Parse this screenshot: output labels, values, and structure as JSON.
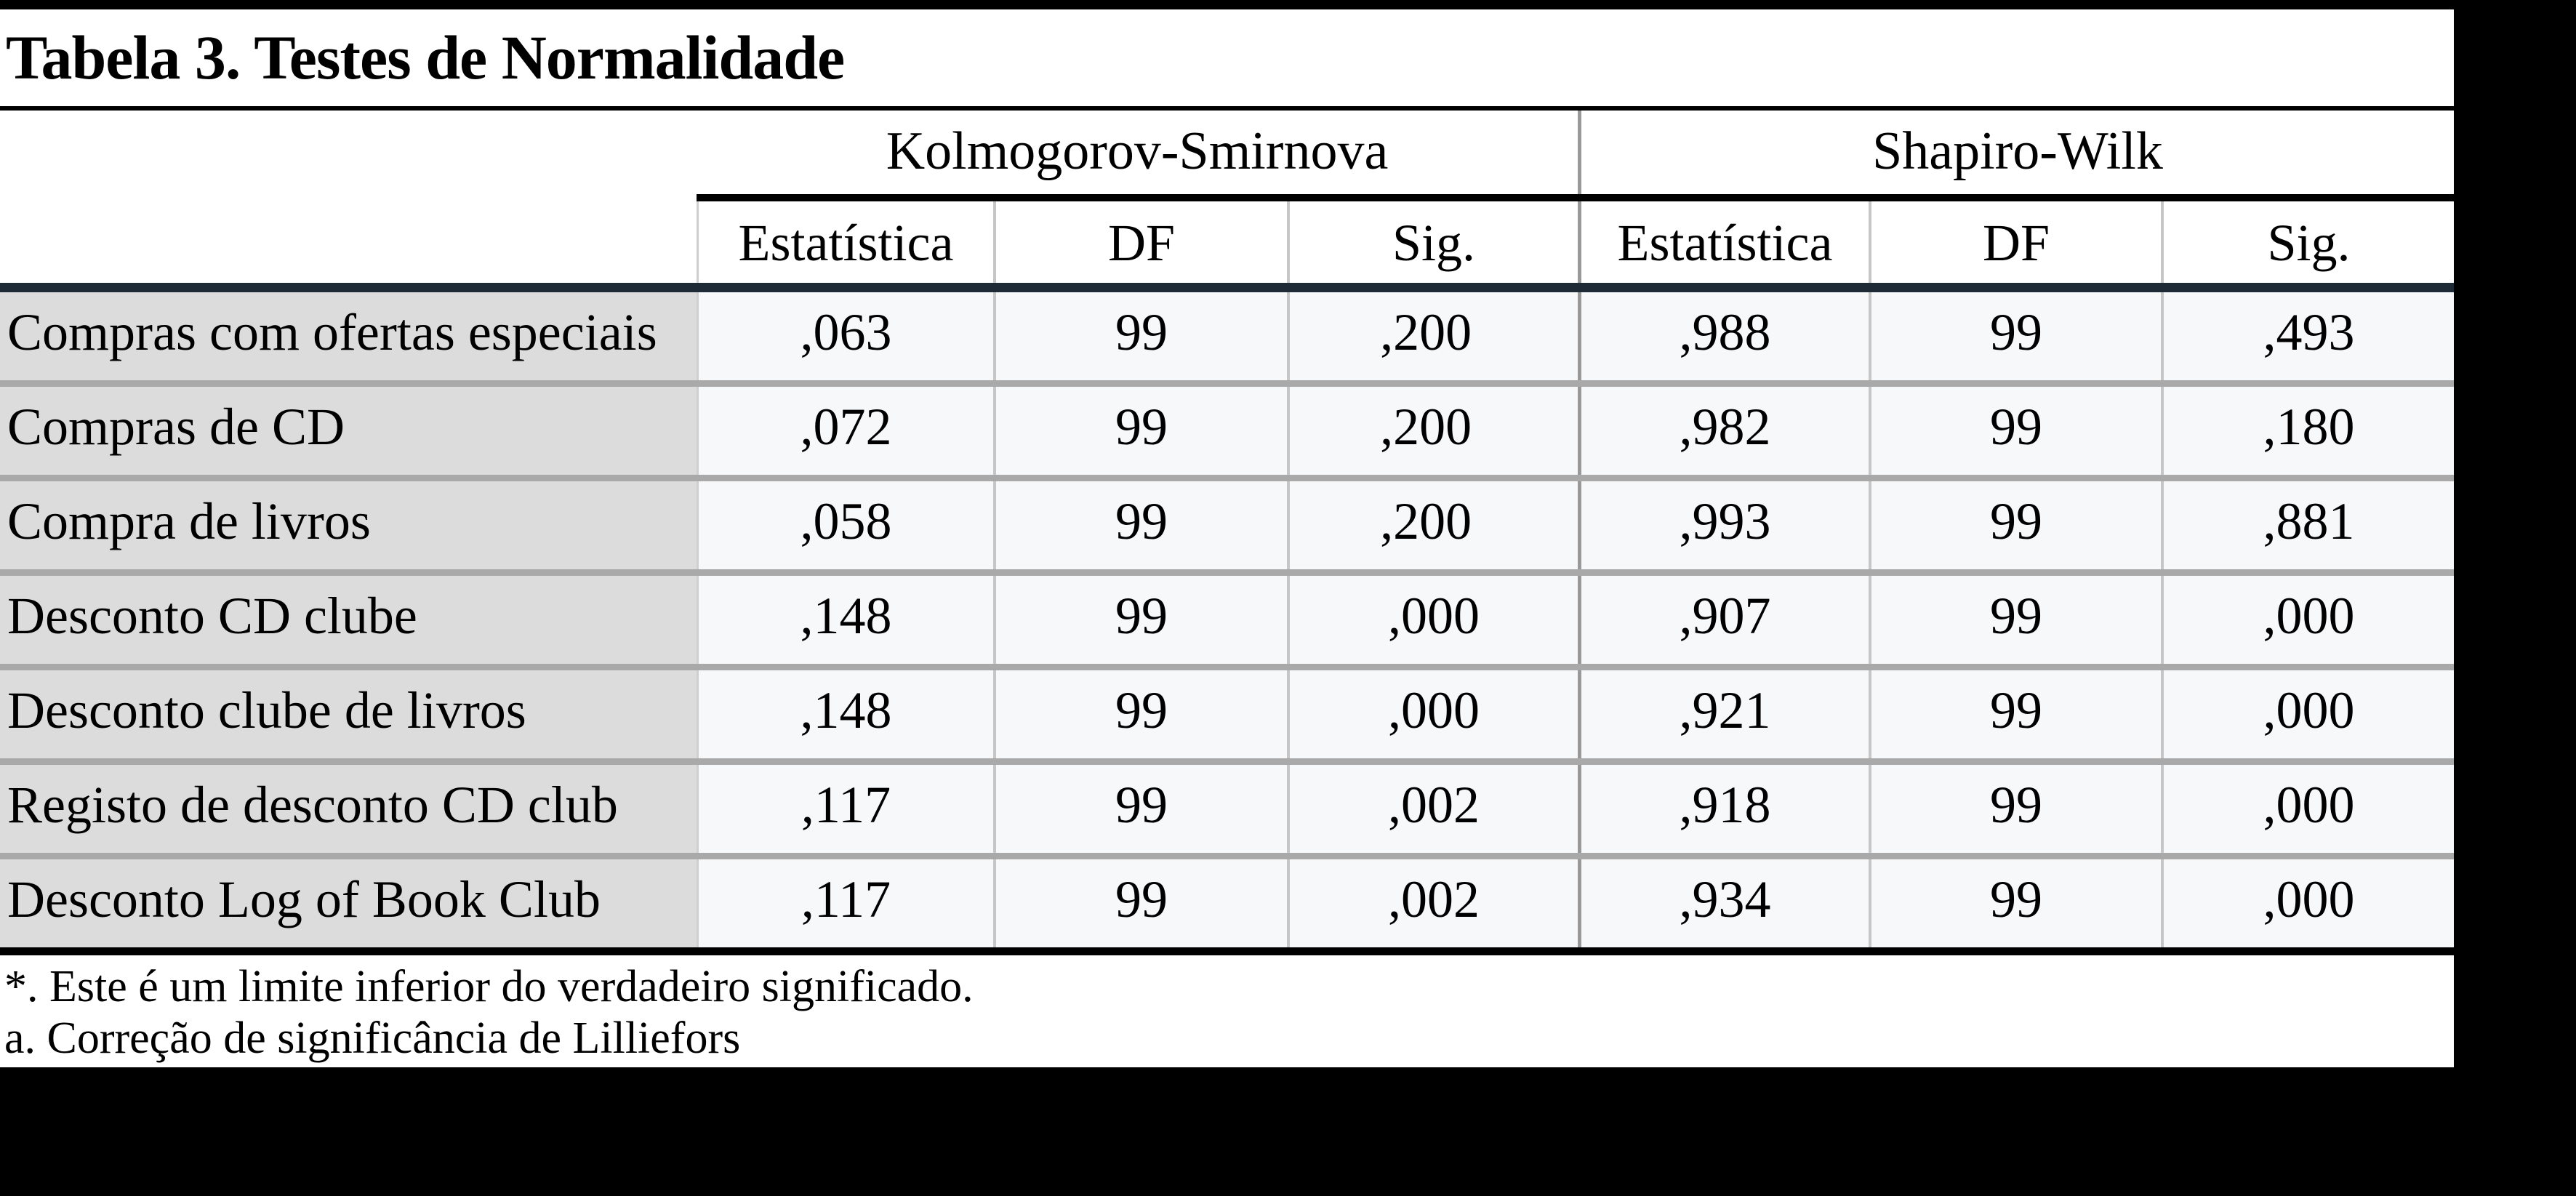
{
  "title": "Tabela 3. Testes de Normalidade",
  "table": {
    "group_headers": [
      {
        "label": "Kolmogorov-Smirnova"
      },
      {
        "label": "Shapiro-Wilk"
      }
    ],
    "sub_headers": [
      "Estatística",
      "DF",
      "Sig."
    ],
    "rows": [
      {
        "label": "Compras com ofertas especiais",
        "ks": [
          ",063",
          "99",
          ",200*"
        ],
        "sw": [
          ",988",
          "99",
          ",493"
        ]
      },
      {
        "label": "Compras de CD",
        "ks": [
          ",072",
          "99",
          ",200*"
        ],
        "sw": [
          ",982",
          "99",
          ",180"
        ]
      },
      {
        "label": "Compra de livros",
        "ks": [
          ",058",
          "99",
          ",200*"
        ],
        "sw": [
          ",993",
          "99",
          ",881"
        ]
      },
      {
        "label": "Desconto CD clube",
        "ks": [
          ",148",
          "99",
          ",000"
        ],
        "sw": [
          ",907",
          "99",
          ",000"
        ]
      },
      {
        "label": "Desconto clube de livros",
        "ks": [
          ",148",
          "99",
          ",000"
        ],
        "sw": [
          ",921",
          "99",
          ",000"
        ]
      },
      {
        "label": "Registo de desconto CD club",
        "ks": [
          ",117",
          "99",
          ",002"
        ],
        "sw": [
          ",918",
          "99",
          ",000"
        ]
      },
      {
        "label": "Desconto Log of Book Club",
        "ks": [
          ",117",
          "99",
          ",002"
        ],
        "sw": [
          ",934",
          "99",
          ",000"
        ]
      }
    ],
    "footnotes": [
      "*. Este é um limite inferior do verdadeiro significado.",
      "a. Correção de significância de Lilliefors"
    ]
  },
  "colors": {
    "page_bg": "#000000",
    "sheet_bg": "#ffffff",
    "label_cell_bg": "#dcdcdc",
    "value_cell_bg": "#f7f8fa",
    "row_separator": "#a9a9a9",
    "column_divider": "#c6c6c6",
    "group_divider": "#999999",
    "subheader_rule": "#1e2a36",
    "black_rule": "#000000"
  }
}
